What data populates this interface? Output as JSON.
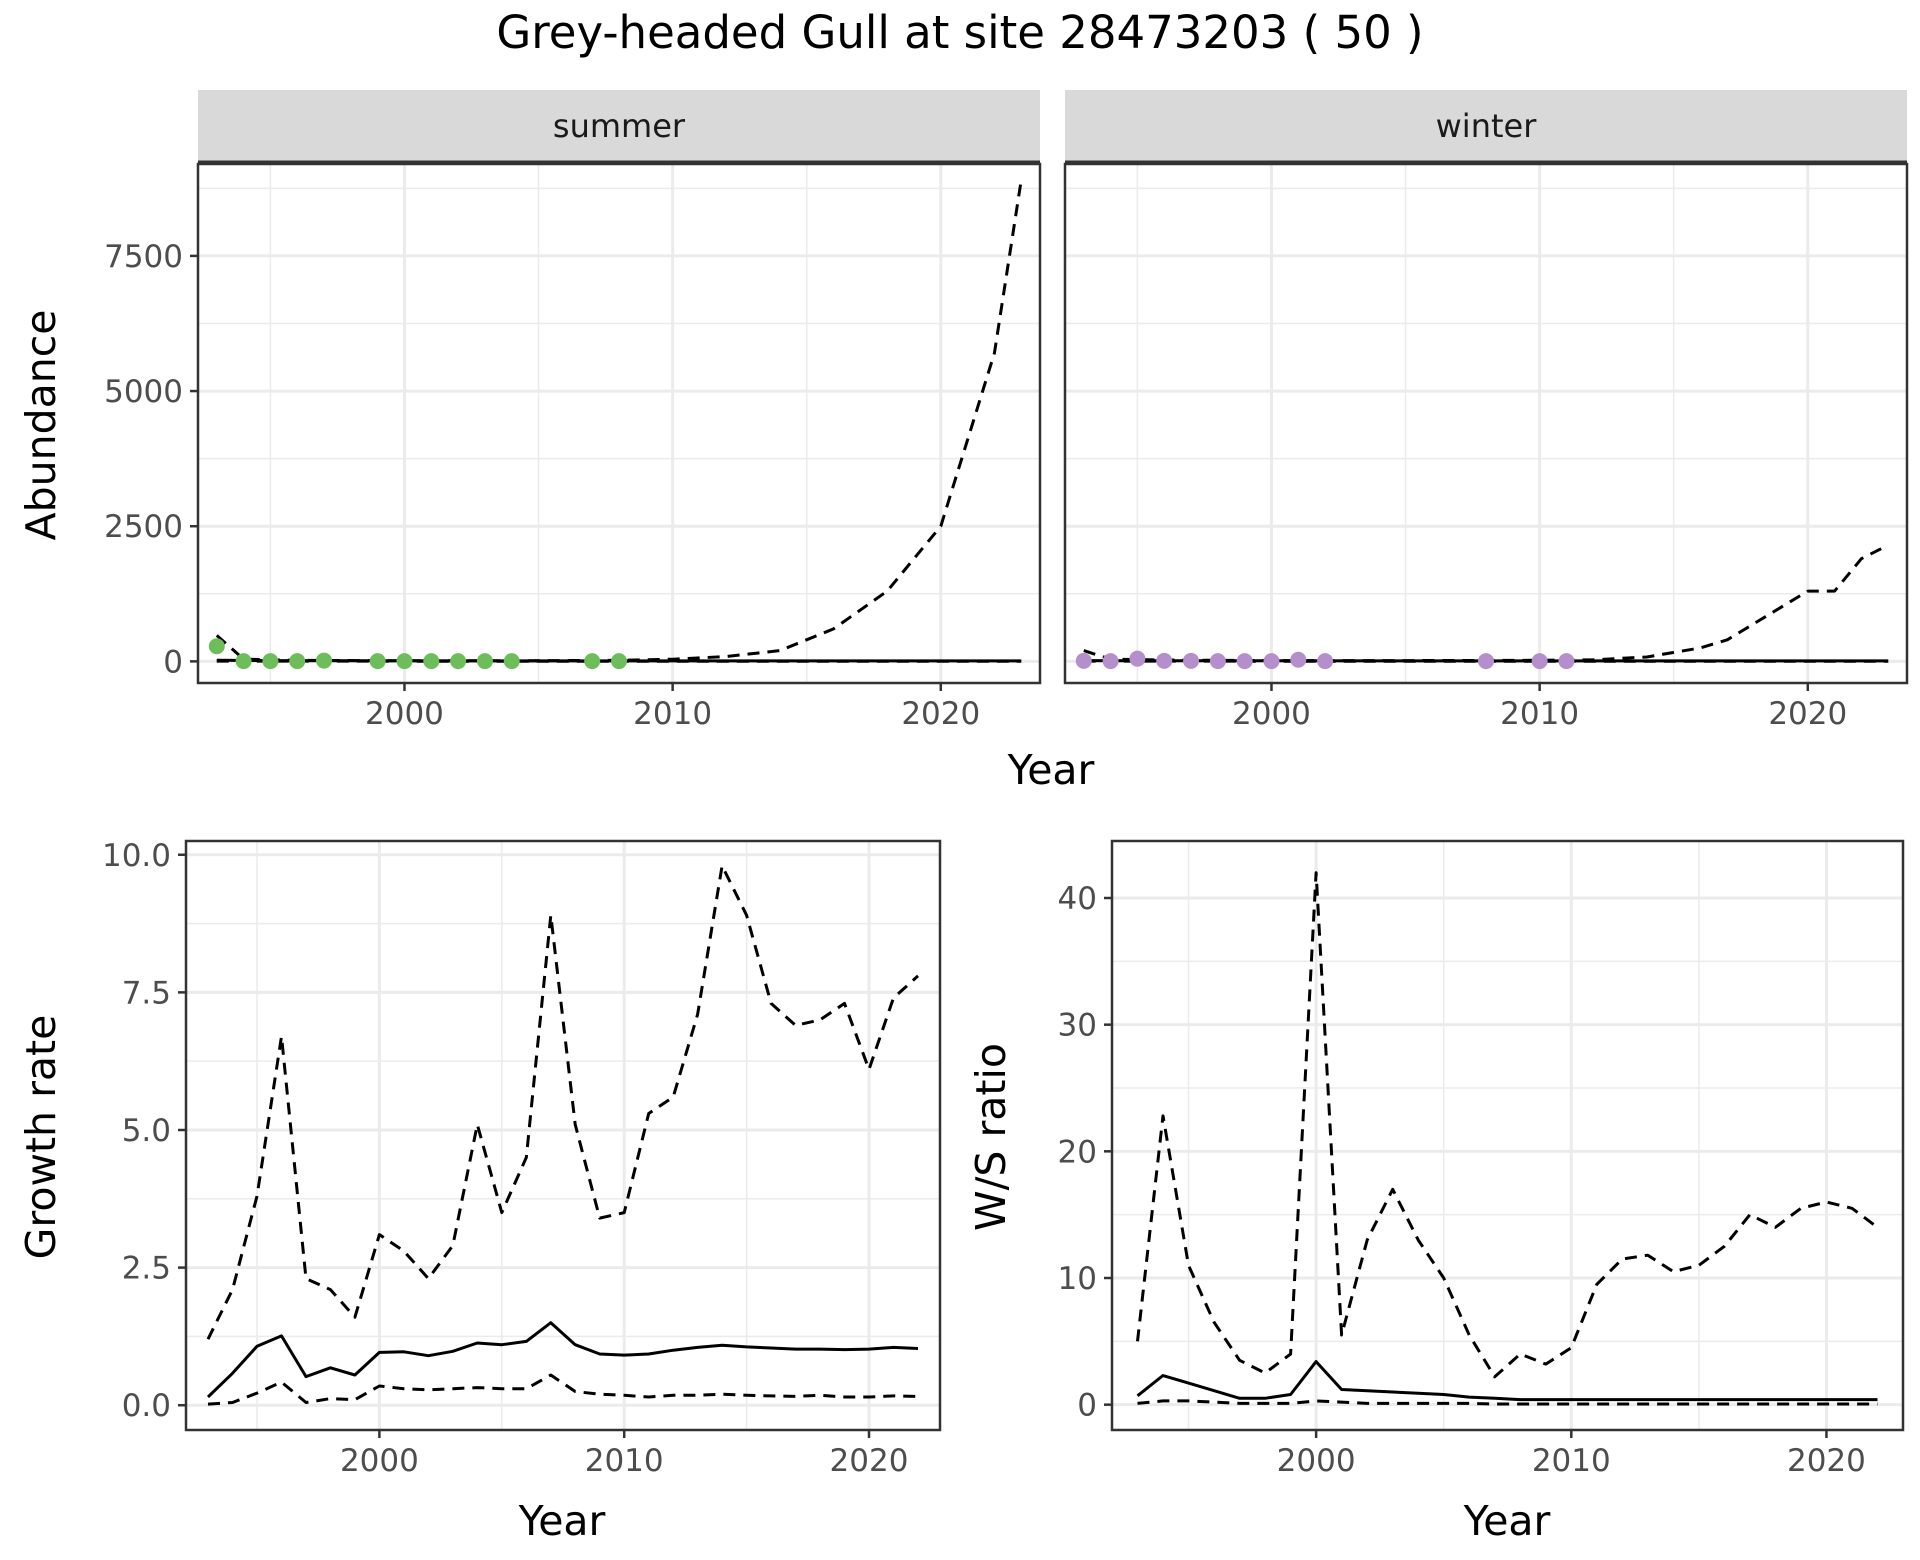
{
  "figure": {
    "title": "Grey-headed Gull at site 28473203 ( 50 )"
  },
  "chart_data": [
    {
      "type": "line",
      "facet": "summer",
      "xlabel": "Year",
      "ylabel": "Abundance",
      "xlim": [
        1992.3,
        2023.7
      ],
      "ylim": [
        -400,
        9200
      ],
      "xticks": [
        2000,
        2010,
        2020
      ],
      "yticks": [
        0,
        2500,
        5000,
        7500
      ],
      "grid": true,
      "point_color": "#6DBE5B",
      "points": {
        "x": [
          1993,
          1994,
          1995,
          1996,
          1997,
          1999,
          2000,
          2001,
          2002,
          2003,
          2004,
          2007,
          2008
        ],
        "y": [
          280,
          5,
          5,
          5,
          15,
          5,
          5,
          5,
          5,
          5,
          5,
          5,
          5
        ]
      },
      "series": [
        {
          "style": "solid",
          "x": [
            1993,
            1995,
            2000,
            2005,
            2010,
            2015,
            2020,
            2023
          ],
          "y": [
            20,
            15,
            10,
            8,
            8,
            8,
            8,
            8
          ]
        },
        {
          "style": "dashed",
          "x": [
            1993,
            1994,
            1996,
            2000,
            2004,
            2008,
            2010,
            2012,
            2014,
            2016,
            2018,
            2020,
            2022,
            2023
          ],
          "y": [
            480,
            40,
            20,
            10,
            10,
            20,
            40,
            90,
            200,
            600,
            1300,
            2500,
            5700,
            8900
          ]
        },
        {
          "style": "dashed",
          "x": [
            1993,
            2000,
            2010,
            2023
          ],
          "y": [
            5,
            3,
            2,
            2
          ]
        }
      ]
    },
    {
      "type": "line",
      "facet": "winter",
      "xlabel": "Year",
      "ylabel": "Abundance",
      "xlim": [
        1992.3,
        2023.7
      ],
      "ylim": [
        -400,
        9200
      ],
      "xticks": [
        2000,
        2010,
        2020
      ],
      "yticks": [
        0,
        2500,
        5000,
        7500
      ],
      "grid": true,
      "point_color": "#B58FCB",
      "points": {
        "x": [
          1993,
          1994,
          1995,
          1996,
          1997,
          1998,
          1999,
          2000,
          2001,
          2002,
          2008,
          2010,
          2011
        ],
        "y": [
          10,
          5,
          50,
          10,
          10,
          5,
          5,
          5,
          30,
          5,
          5,
          5,
          5
        ]
      },
      "series": [
        {
          "style": "solid",
          "x": [
            1993,
            1995,
            2000,
            2005,
            2010,
            2015,
            2020,
            2023
          ],
          "y": [
            15,
            12,
            10,
            8,
            8,
            8,
            8,
            8
          ]
        },
        {
          "style": "dashed",
          "x": [
            1993,
            1994,
            1996,
            2000,
            2005,
            2010,
            2012,
            2014,
            2016,
            2017,
            2018,
            2019,
            2020,
            2021,
            2022,
            2023
          ],
          "y": [
            200,
            40,
            25,
            15,
            15,
            20,
            30,
            80,
            250,
            400,
            700,
            1000,
            1300,
            1300,
            1900,
            2150
          ]
        },
        {
          "style": "dashed",
          "x": [
            1993,
            2000,
            2010,
            2023
          ],
          "y": [
            5,
            3,
            2,
            2
          ]
        }
      ]
    },
    {
      "type": "line",
      "xlabel": "Year",
      "ylabel": "Growth rate",
      "xlim": [
        1992.1,
        2022.9
      ],
      "ylim": [
        -0.45,
        10.25
      ],
      "xticks": [
        2000,
        2010,
        2020
      ],
      "yticks": [
        "0.0",
        "2.5",
        "5.0",
        "7.5",
        "10.0"
      ],
      "grid": true,
      "series": [
        {
          "style": "solid",
          "x": [
            1993,
            1994,
            1995,
            1996,
            1997,
            1998,
            1999,
            2000,
            2001,
            2002,
            2003,
            2004,
            2005,
            2006,
            2007,
            2008,
            2009,
            2010,
            2011,
            2012,
            2013,
            2014,
            2015,
            2016,
            2017,
            2018,
            2019,
            2020,
            2021,
            2022
          ],
          "y": [
            0.15,
            0.58,
            1.07,
            1.26,
            0.52,
            0.68,
            0.55,
            0.96,
            0.97,
            0.9,
            0.98,
            1.13,
            1.1,
            1.16,
            1.5,
            1.1,
            0.93,
            0.91,
            0.93,
            1.0,
            1.05,
            1.09,
            1.06,
            1.04,
            1.02,
            1.02,
            1.01,
            1.02,
            1.05,
            1.03
          ]
        },
        {
          "style": "dashed",
          "x": [
            1993,
            1994,
            1995,
            1996,
            1997,
            1998,
            1999,
            2000,
            2001,
            2002,
            2003,
            2004,
            2005,
            2006,
            2007,
            2008,
            2009,
            2010,
            2011,
            2012,
            2013,
            2014,
            2015,
            2016,
            2017,
            2018,
            2019,
            2020,
            2021,
            2022
          ],
          "y": [
            1.2,
            2.1,
            3.8,
            6.7,
            2.3,
            2.1,
            1.6,
            3.1,
            2.8,
            2.3,
            2.9,
            5.1,
            3.5,
            4.5,
            8.9,
            5.1,
            3.4,
            3.5,
            5.3,
            5.6,
            7.1,
            9.8,
            8.9,
            7.3,
            6.9,
            7.0,
            7.3,
            6.1,
            7.4,
            7.8
          ]
        },
        {
          "style": "dashed",
          "x": [
            1993,
            1994,
            1995,
            1996,
            1997,
            1998,
            1999,
            2000,
            2001,
            2002,
            2003,
            2004,
            2005,
            2006,
            2007,
            2008,
            2009,
            2010,
            2011,
            2012,
            2013,
            2014,
            2015,
            2016,
            2017,
            2018,
            2019,
            2020,
            2021,
            2022
          ],
          "y": [
            0.02,
            0.05,
            0.22,
            0.42,
            0.05,
            0.12,
            0.1,
            0.35,
            0.3,
            0.28,
            0.3,
            0.32,
            0.3,
            0.3,
            0.55,
            0.25,
            0.2,
            0.18,
            0.15,
            0.18,
            0.18,
            0.2,
            0.18,
            0.17,
            0.16,
            0.18,
            0.15,
            0.15,
            0.17,
            0.16
          ]
        }
      ]
    },
    {
      "type": "line",
      "xlabel": "Year",
      "ylabel": "W/S ratio",
      "xlim": [
        1992.0,
        2023.0
      ],
      "ylim": [
        -2,
        44.5
      ],
      "xticks": [
        2000,
        2010,
        2020
      ],
      "yticks": [
        0,
        10,
        20,
        30,
        40
      ],
      "grid": true,
      "series": [
        {
          "style": "solid",
          "x": [
            1993,
            1994,
            1995,
            1996,
            1997,
            1998,
            1999,
            2000,
            2001,
            2002,
            2003,
            2004,
            2005,
            2006,
            2007,
            2008,
            2009,
            2010,
            2011,
            2012,
            2013,
            2014,
            2015,
            2016,
            2017,
            2018,
            2019,
            2020,
            2021,
            2022
          ],
          "y": [
            0.7,
            2.3,
            1.7,
            1.1,
            0.5,
            0.5,
            0.8,
            3.4,
            1.2,
            1.1,
            1.0,
            0.9,
            0.8,
            0.6,
            0.5,
            0.4,
            0.4,
            0.4,
            0.4,
            0.4,
            0.4,
            0.4,
            0.4,
            0.4,
            0.4,
            0.4,
            0.4,
            0.4,
            0.4,
            0.4
          ]
        },
        {
          "style": "dashed",
          "x": [
            1993,
            1994,
            1995,
            1996,
            1997,
            1998,
            1999,
            2000,
            2001,
            2002,
            2003,
            2004,
            2005,
            2006,
            2007,
            2008,
            2009,
            2010,
            2011,
            2012,
            2013,
            2014,
            2015,
            2016,
            2017,
            2018,
            2019,
            2020,
            2021,
            2022
          ],
          "y": [
            5.0,
            22.8,
            11.0,
            6.5,
            3.5,
            2.5,
            4.0,
            42.0,
            5.5,
            13.0,
            17.0,
            13.0,
            10.0,
            5.5,
            2.2,
            4.0,
            3.2,
            4.5,
            9.5,
            11.5,
            11.8,
            10.5,
            11.0,
            12.5,
            15.0,
            14.0,
            15.5,
            16.0,
            15.5,
            14.0
          ]
        },
        {
          "style": "dashed",
          "x": [
            1993,
            1994,
            1995,
            1996,
            1997,
            1998,
            1999,
            2000,
            2001,
            2002,
            2003,
            2004,
            2005,
            2006,
            2007,
            2008,
            2009,
            2010,
            2011,
            2012,
            2013,
            2014,
            2015,
            2016,
            2017,
            2018,
            2019,
            2020,
            2021,
            2022
          ],
          "y": [
            0.1,
            0.3,
            0.3,
            0.2,
            0.1,
            0.1,
            0.1,
            0.3,
            0.2,
            0.1,
            0.1,
            0.1,
            0.1,
            0.1,
            0.05,
            0.05,
            0.05,
            0.05,
            0.05,
            0.05,
            0.05,
            0.05,
            0.05,
            0.05,
            0.05,
            0.05,
            0.05,
            0.05,
            0.05,
            0.05
          ]
        }
      ]
    }
  ]
}
